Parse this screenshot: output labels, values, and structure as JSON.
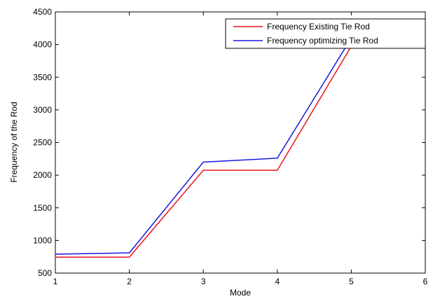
{
  "chart_data": {
    "type": "line",
    "title": "",
    "xlabel": "Mode",
    "ylabel": "Frequency of the Rod",
    "x": [
      1,
      2,
      3,
      4,
      5,
      6
    ],
    "xticks": [
      "1",
      "2",
      "3",
      "4",
      "5",
      "6"
    ],
    "yticks": [
      "500",
      "1000",
      "1500",
      "2000",
      "2500",
      "3000",
      "3500",
      "4000",
      "4500"
    ],
    "xlim": [
      1,
      6
    ],
    "ylim": [
      500,
      4500
    ],
    "grid": false,
    "legend_position": "top-right",
    "series": [
      {
        "name": "Frequency Existing Tie Rod",
        "color": "#e8141c",
        "values": [
          745,
          745,
          2075,
          2075,
          3975,
          3965
        ]
      },
      {
        "name": "Frequency optimizing Tie Rod",
        "color": "#1818e0",
        "values": [
          790,
          810,
          2200,
          2260,
          4100,
          4120
        ]
      }
    ]
  }
}
